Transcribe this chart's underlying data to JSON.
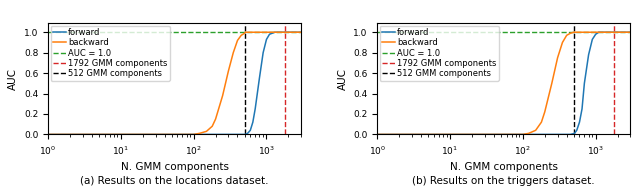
{
  "subplot_titles": [
    "(a) Results on the locations dataset.",
    "(b) Results on the triggers dataset."
  ],
  "xlabel": "N. GMM components",
  "ylabel": "AUC",
  "xlim": [
    1,
    3000
  ],
  "ylim": [
    0.0,
    1.09
  ],
  "vline_red": 1792,
  "vline_black": 512,
  "auc_line": 1.0,
  "forward_color": "#1f77b4",
  "backward_color": "#ff7f0e",
  "auc_color": "#2ca02c",
  "vline_red_color": "#d62728",
  "vline_black_color": "#000000",
  "legend_labels": [
    "forward",
    "backward",
    "AUC = 1.0",
    "1792 GMM components",
    "512 GMM components"
  ],
  "left_forward_x": [
    1,
    5,
    10,
    50,
    100,
    200,
    300,
    400,
    512,
    550,
    600,
    650,
    700,
    800,
    900,
    1000,
    1100,
    1300,
    1500,
    1792,
    2000,
    3000
  ],
  "left_forward_y": [
    0.0,
    0.0,
    0.0,
    0.0,
    0.0,
    0.0,
    0.0,
    0.0,
    0.0,
    0.01,
    0.04,
    0.12,
    0.25,
    0.55,
    0.8,
    0.93,
    0.98,
    1.0,
    1.0,
    1.0,
    1.0,
    1.0
  ],
  "left_backward_x": [
    1,
    5,
    10,
    50,
    80,
    100,
    120,
    150,
    180,
    200,
    250,
    300,
    350,
    400,
    450,
    500,
    512,
    600,
    800,
    1792,
    3000
  ],
  "left_backward_y": [
    0.0,
    0.0,
    0.0,
    0.0,
    0.0,
    0.0,
    0.01,
    0.03,
    0.08,
    0.15,
    0.38,
    0.62,
    0.8,
    0.92,
    0.97,
    0.99,
    1.0,
    1.0,
    1.0,
    1.0,
    1.0
  ],
  "right_forward_x": [
    1,
    5,
    10,
    50,
    100,
    200,
    300,
    400,
    450,
    512,
    550,
    600,
    650,
    700,
    800,
    900,
    1000,
    1100,
    1300,
    1500,
    1792,
    3000
  ],
  "right_forward_y": [
    0.0,
    0.0,
    0.0,
    0.0,
    0.0,
    0.0,
    0.0,
    0.0,
    0.0,
    0.01,
    0.04,
    0.12,
    0.25,
    0.5,
    0.78,
    0.93,
    0.98,
    1.0,
    1.0,
    1.0,
    1.0,
    1.0
  ],
  "right_backward_x": [
    1,
    5,
    10,
    50,
    80,
    100,
    120,
    150,
    180,
    200,
    250,
    300,
    350,
    400,
    450,
    500,
    512,
    600,
    800,
    1792,
    3000
  ],
  "right_backward_y": [
    0.0,
    0.0,
    0.0,
    0.0,
    0.0,
    0.0,
    0.01,
    0.04,
    0.12,
    0.22,
    0.5,
    0.75,
    0.9,
    0.97,
    0.99,
    1.0,
    1.0,
    1.0,
    1.0,
    1.0,
    1.0
  ],
  "tick_fontsize": 6.5,
  "label_fontsize": 7.5,
  "legend_fontsize": 6.0,
  "title_fontsize": 7.5
}
